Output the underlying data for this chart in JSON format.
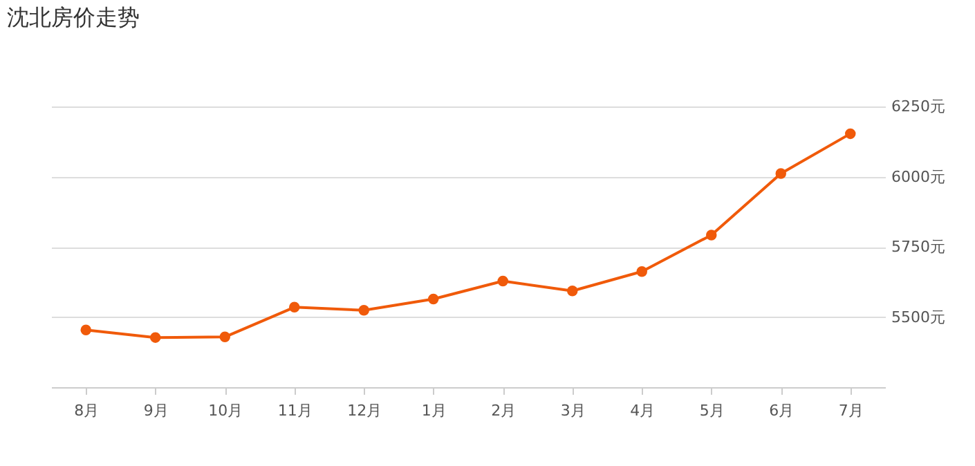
{
  "chart_data": {
    "type": "line",
    "title": "沈北房价走势",
    "categories": [
      "8月",
      "9月",
      "10月",
      "11月",
      "12月",
      "1月",
      "2月",
      "3月",
      "4月",
      "5月",
      "6月",
      "7月"
    ],
    "series": [
      {
        "color": "#f05a0a",
        "values": [
          5454,
          5427,
          5429,
          5535,
          5524,
          5564,
          5628,
          5593,
          5662,
          5792,
          6011,
          6153
        ]
      }
    ],
    "ylim": [
      5250,
      6250
    ],
    "yticks": [
      {
        "value": 5500,
        "label": "5500元"
      },
      {
        "value": 5750,
        "label": "5750元"
      },
      {
        "value": 6000,
        "label": "6000元"
      },
      {
        "value": 6250,
        "label": "6250元"
      }
    ],
    "grid": "y",
    "marker": "circle",
    "line_style": "solid"
  }
}
